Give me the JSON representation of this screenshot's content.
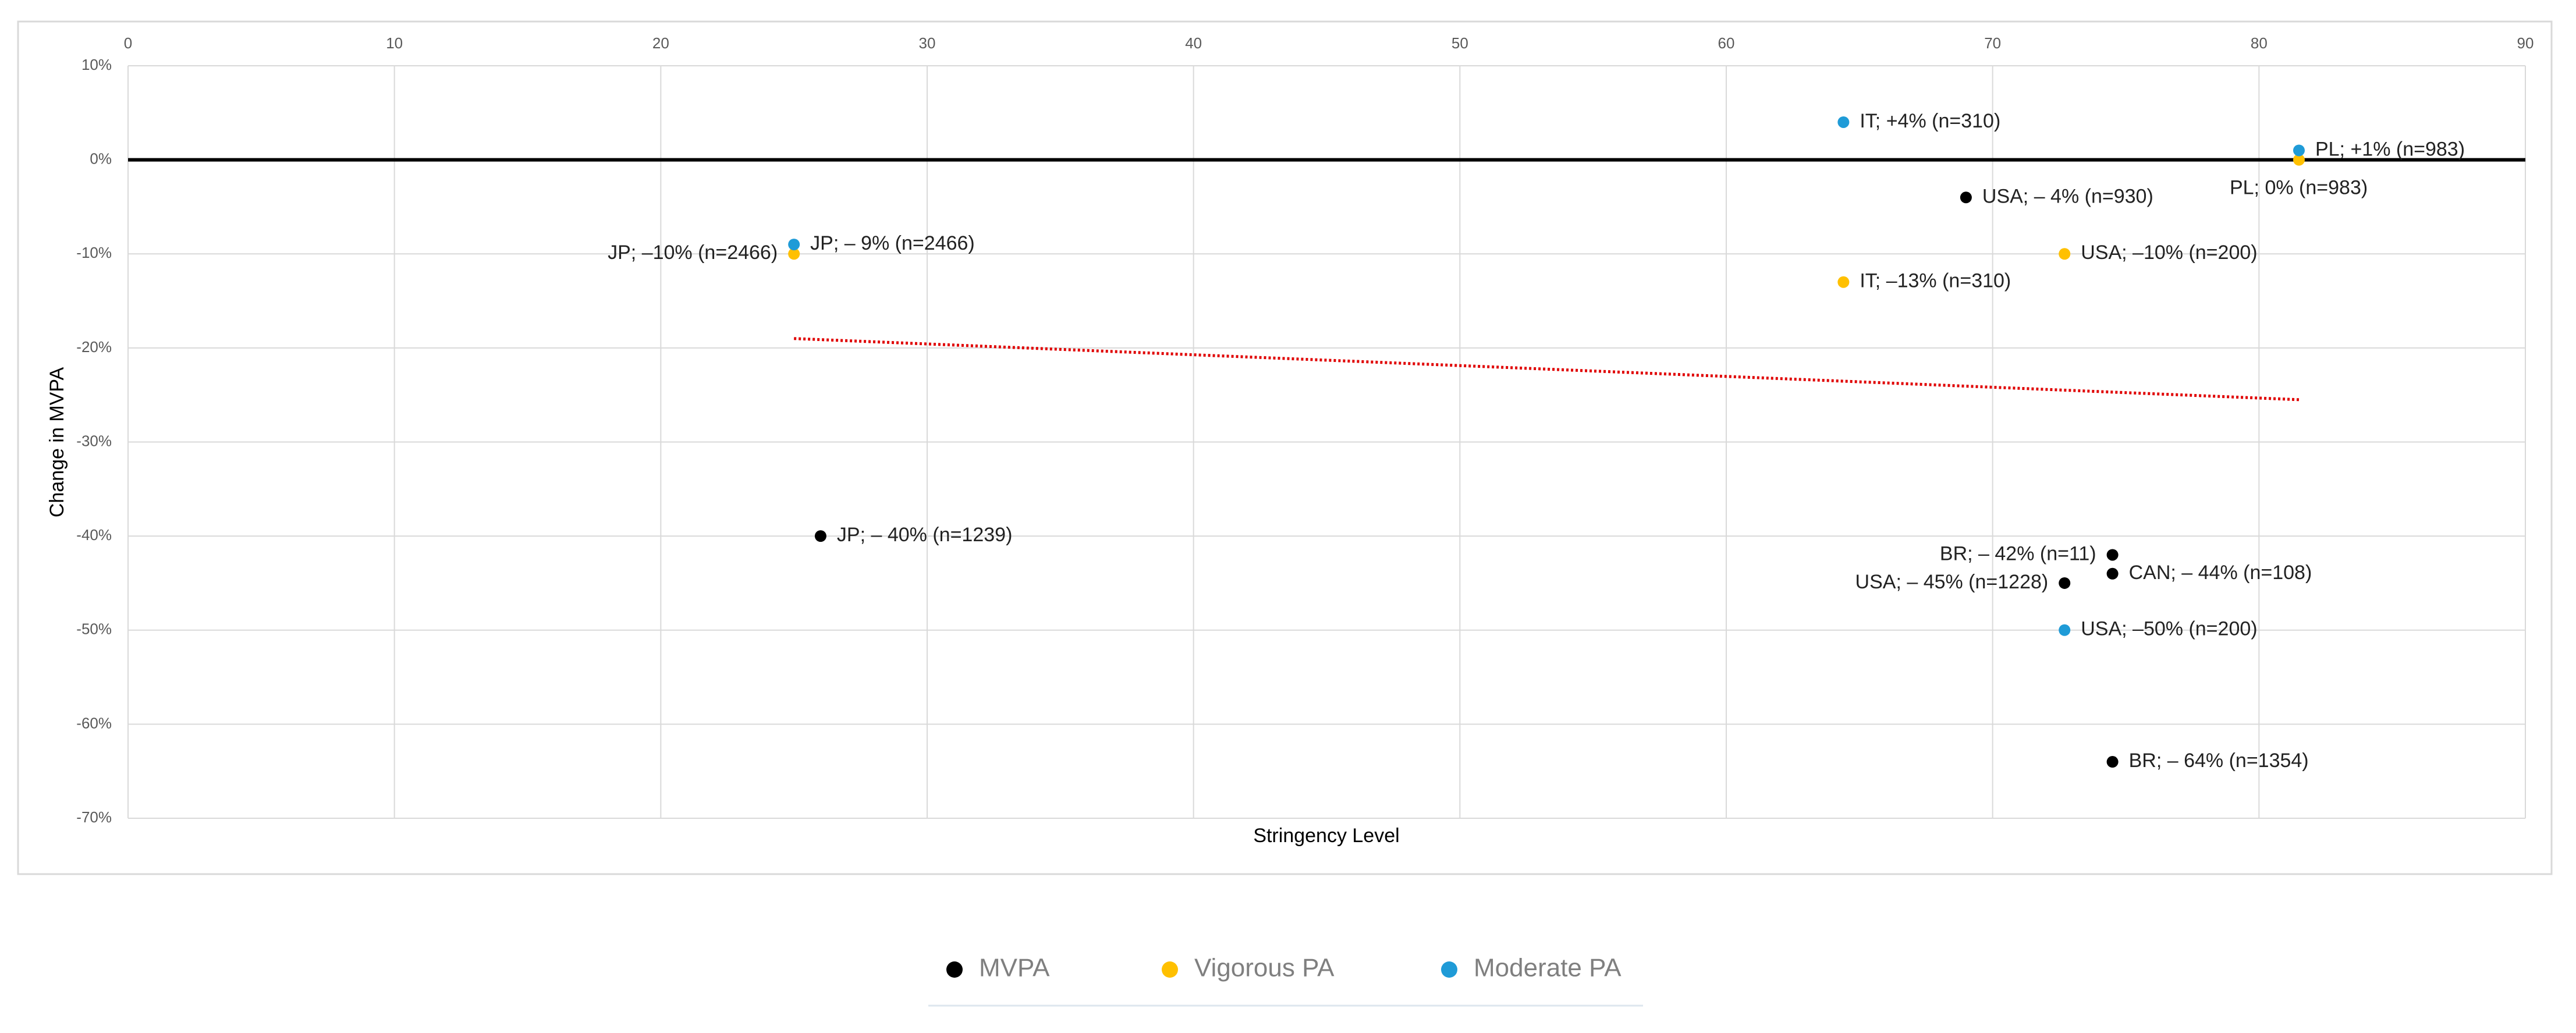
{
  "chart_data": {
    "type": "scatter",
    "x_label": "Stringency Level",
    "y_label": "Change in MVPA",
    "xlim": [
      0,
      90
    ],
    "xticks": [
      0,
      10,
      20,
      30,
      40,
      50,
      60,
      70,
      80,
      90
    ],
    "ylim": [
      -70,
      10
    ],
    "yticks": [
      {
        "value": 10,
        "label": "10%"
      },
      {
        "value": 0,
        "label": "0%"
      },
      {
        "value": -10,
        "label": "-10%"
      },
      {
        "value": -20,
        "label": "-20%"
      },
      {
        "value": -30,
        "label": "-30%"
      },
      {
        "value": -40,
        "label": "-40%"
      },
      {
        "value": -50,
        "label": "-50%"
      },
      {
        "value": -60,
        "label": "-60%"
      },
      {
        "value": -70,
        "label": "-70%"
      }
    ],
    "grid": true,
    "legend": "bottom",
    "series": [
      {
        "name": "MVPA",
        "color": "#000000",
        "x": [
          69,
          26,
          74.5,
          74.5,
          72.7,
          74.5
        ],
        "values": [
          -4,
          -40,
          -42,
          -44,
          -45,
          -64
        ],
        "labels": [
          "USA; – 4% (n=930)",
          "JP; – 40% (n=1239)",
          "BR; – 42% (n=11)",
          "CAN; – 44% (n=108)",
          "USA; – 45% (n=1228)",
          "BR; – 64% (n=1354)"
        ]
      },
      {
        "name": "Vigorous PA",
        "color": "#ffc000",
        "x": [
          25,
          81.5,
          64.4,
          72.7
        ],
        "values": [
          -10,
          0,
          -13,
          -10
        ],
        "labels": [
          "JP; –10% (n=2466)",
          "PL; 0% (n=983)",
          "IT; –13% (n=310)",
          "USA; –10% (n=200)"
        ]
      },
      {
        "name": "Moderate PA",
        "color": "#1f9bd7",
        "x": [
          25,
          81.5,
          64.4,
          72.7
        ],
        "values": [
          -9,
          1,
          4,
          -50
        ],
        "labels": [
          "JP; – 9% (n=2466)",
          "PL; +1% (n=983)",
          "IT; +4% (n=310)",
          "USA; –50% (n=200)"
        ]
      }
    ],
    "trendline": {
      "color": "#e00000",
      "x": [
        25,
        81.5
      ],
      "values": [
        -19,
        -25.5
      ]
    }
  }
}
